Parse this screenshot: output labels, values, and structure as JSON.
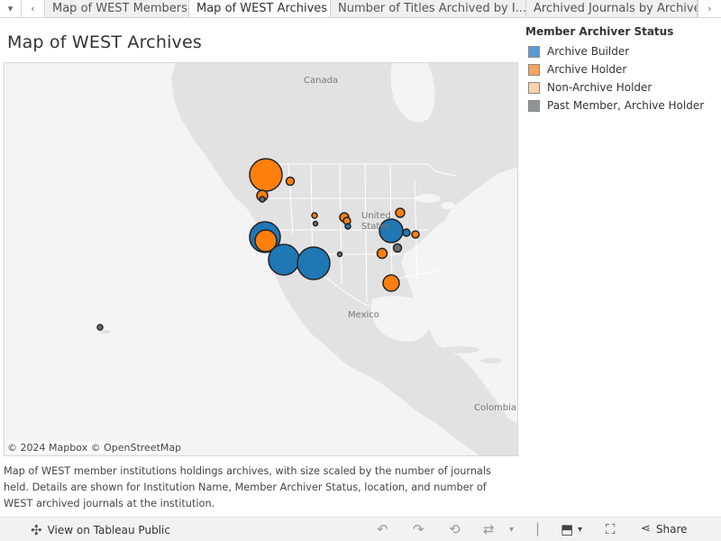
{
  "tabbar": {
    "tabs": [
      {
        "label": "Map of WEST Members",
        "active": false
      },
      {
        "label": "Map of WEST Archives",
        "active": true
      },
      {
        "label": "Number of Titles Archived by I...",
        "active": false
      },
      {
        "label": "Archived Journals by Archive...",
        "active": false
      }
    ]
  },
  "title": "Map of WEST Archives",
  "map": {
    "labels": {
      "canada": "Canada",
      "united_states": "United\nStates",
      "mexico": "Mexico",
      "colombia": "Colombia"
    },
    "attribution": "© 2024 Mapbox  © OpenStreetMap",
    "colors": {
      "archive_builder": "#1f77b4",
      "archive_holder": "#ff7f0e",
      "past_member": "#6b6f74",
      "land": "#e2e2e2",
      "water": "#f4f4f4",
      "border": "#ffffff"
    },
    "markers": [
      {
        "status": "archive_holder",
        "size": "large",
        "location": "Pacific Northwest"
      },
      {
        "status": "archive_holder",
        "size": "small",
        "location": "Idaho"
      },
      {
        "status": "archive_holder",
        "size": "small",
        "location": "Oregon"
      },
      {
        "status": "past_member",
        "size": "tiny",
        "location": "Oregon"
      },
      {
        "status": "archive_builder",
        "size": "large",
        "location": "Northern California"
      },
      {
        "status": "archive_holder",
        "size": "large",
        "location": "Northern California"
      },
      {
        "status": "archive_builder",
        "size": "large",
        "location": "Southern California"
      },
      {
        "status": "archive_builder",
        "size": "large",
        "location": "Arizona"
      },
      {
        "status": "past_member",
        "size": "tiny",
        "location": "New Mexico"
      },
      {
        "status": "archive_holder",
        "size": "tiny",
        "location": "Colorado"
      },
      {
        "status": "past_member",
        "size": "tiny",
        "location": "Colorado"
      },
      {
        "status": "archive_holder",
        "size": "small",
        "location": "Kansas"
      },
      {
        "status": "archive_holder",
        "size": "small",
        "location": "Kansas"
      },
      {
        "status": "archive_builder",
        "size": "tiny",
        "location": "Kansas"
      },
      {
        "status": "archive_holder",
        "size": "small",
        "location": "Iowa"
      },
      {
        "status": "archive_builder",
        "size": "large",
        "location": "Missouri"
      },
      {
        "status": "archive_builder",
        "size": "small",
        "location": "Missouri"
      },
      {
        "status": "archive_holder",
        "size": "small",
        "location": "Illinois"
      },
      {
        "status": "past_member",
        "size": "small",
        "location": "Arkansas"
      },
      {
        "status": "archive_holder",
        "size": "small",
        "location": "Oklahoma"
      },
      {
        "status": "archive_holder",
        "size": "medium",
        "location": "Texas"
      },
      {
        "status": "past_member",
        "size": "tiny",
        "location": "Hawaii"
      }
    ]
  },
  "legend": {
    "title": "Member Archiver Status",
    "items": [
      {
        "label": "Archive Builder",
        "color": "#5b9bd5"
      },
      {
        "label": "Archive Holder",
        "color": "#f7a35c"
      },
      {
        "label": "Non-Archive Holder",
        "color": "#fcd3a9"
      },
      {
        "label": "Past Member, Archive Holder",
        "color": "#8f9499"
      }
    ]
  },
  "caption": "Map of WEST member institutions holdings archives, with size scaled by the number of journals held.  Details are shown for Institution Name, Member Archiver Status, location, and number of WEST archived journals at the institution.",
  "toolbar": {
    "view_label": "View on Tableau Public",
    "share_label": "Share"
  }
}
